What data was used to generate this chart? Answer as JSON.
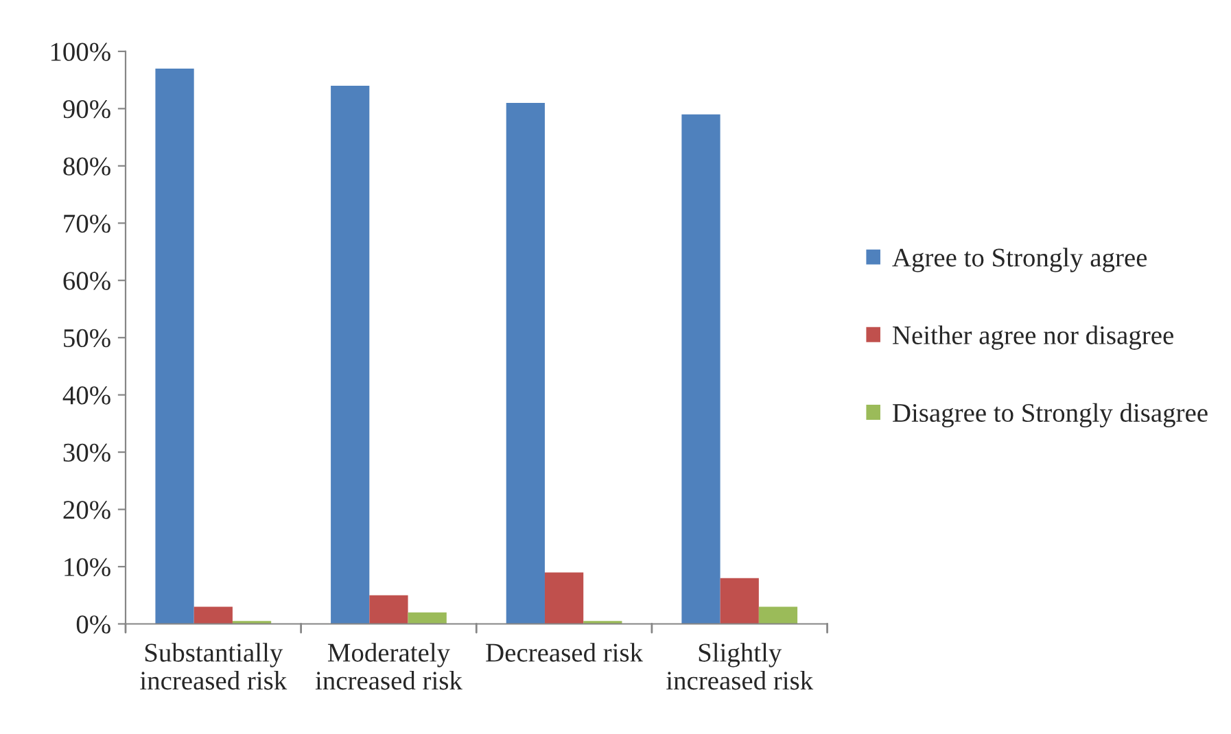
{
  "chart_data": {
    "type": "bar",
    "categories": [
      "Substantially\nincreased risk",
      "Moderately\nincreased risk",
      "Decreased risk",
      "Slightly\nincreased risk"
    ],
    "series": [
      {
        "name": "Agree to Strongly agree",
        "color": "#4f81bd",
        "values": [
          97,
          94,
          91,
          89
        ]
      },
      {
        "name": "Neither agree nor disagree",
        "color": "#c0504d",
        "values": [
          3,
          5,
          9,
          8
        ]
      },
      {
        "name": "Disagree to Strongly disagree",
        "color": "#9bbb59",
        "values": [
          0.5,
          2,
          0.5,
          3
        ]
      }
    ],
    "ylim": [
      0,
      100
    ],
    "yticks": [
      {
        "value": 0,
        "label": "0%"
      },
      {
        "value": 10,
        "label": "10%"
      },
      {
        "value": 20,
        "label": "20%"
      },
      {
        "value": 30,
        "label": "30%"
      },
      {
        "value": 40,
        "label": "40%"
      },
      {
        "value": 50,
        "label": "50%"
      },
      {
        "value": 60,
        "label": "60%"
      },
      {
        "value": 70,
        "label": "70%"
      },
      {
        "value": 80,
        "label": "80%"
      },
      {
        "value": 90,
        "label": "90%"
      },
      {
        "value": 100,
        "label": "100%"
      }
    ],
    "grid": false,
    "legend": "right"
  }
}
